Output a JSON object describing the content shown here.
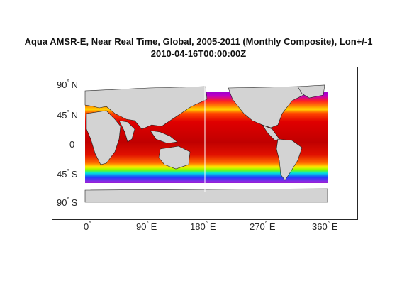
{
  "figure": {
    "title_line1": "Aqua AMSR-E, Near Real Time, Global, 2005-2011 (Monthly Composite), Lon+/-1",
    "title_line2": "2010-04-16T00:00:00Z"
  },
  "map": {
    "projection": "equirectangular",
    "lon_range": [
      0,
      360
    ],
    "lat_range": [
      -90,
      90
    ],
    "land_color": "#d3d3d3",
    "coast_color": "#1a1a1a",
    "no_data_color": "#ffffff",
    "colormap": [
      "#c000c0",
      "#8a2be2",
      "#3f3fff",
      "#00c8ff",
      "#00e66e",
      "#c8f000",
      "#ffff00",
      "#ffa000",
      "#ff3c00",
      "#c80000"
    ],
    "lat_ticks": [
      {
        "value": 90,
        "deg": "90",
        "hemi": "N"
      },
      {
        "value": 45,
        "deg": "45",
        "hemi": "N"
      },
      {
        "value": 0,
        "deg": "0",
        "hemi": ""
      },
      {
        "value": -45,
        "deg": "45",
        "hemi": "S"
      },
      {
        "value": -90,
        "deg": "90",
        "hemi": "S"
      }
    ],
    "lon_ticks": [
      {
        "value": 0,
        "deg": "0",
        "hemi": ""
      },
      {
        "value": 90,
        "deg": "90",
        "hemi": "E"
      },
      {
        "value": 180,
        "deg": "180",
        "hemi": "E"
      },
      {
        "value": 270,
        "deg": "270",
        "hemi": "E"
      },
      {
        "value": 360,
        "deg": "360",
        "hemi": "E"
      }
    ]
  }
}
